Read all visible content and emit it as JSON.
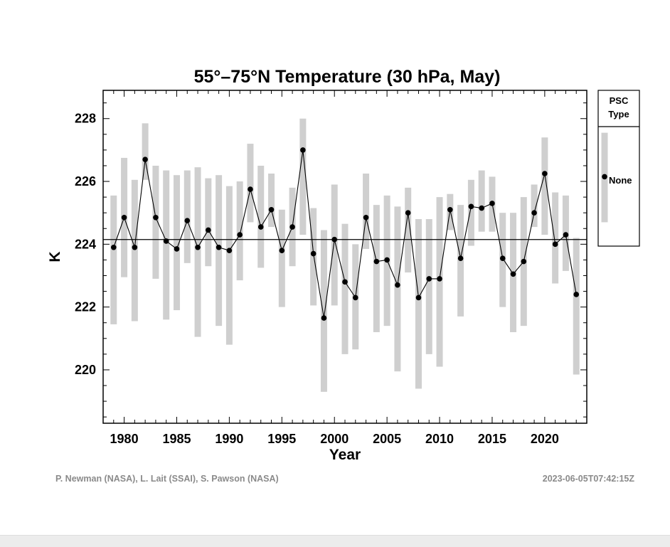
{
  "chart_data": {
    "type": "line",
    "title": "55°–75°N Temperature  (30 hPa, May)",
    "xlabel": "Year",
    "ylabel": "K",
    "xlim": [
      1978,
      2024
    ],
    "ylim": [
      218.3,
      228.9
    ],
    "xticks": [
      1980,
      1985,
      1990,
      1995,
      2000,
      2005,
      2010,
      2015,
      2020
    ],
    "yticks": [
      220,
      222,
      224,
      226,
      228
    ],
    "reference_line": 224.15,
    "legend": {
      "title_line1": "PSC",
      "title_line2": "Type",
      "entries": [
        "None"
      ]
    },
    "series": [
      {
        "name": "None",
        "years": [
          1979,
          1980,
          1981,
          1982,
          1983,
          1984,
          1985,
          1986,
          1987,
          1988,
          1989,
          1990,
          1991,
          1992,
          1993,
          1994,
          1995,
          1996,
          1997,
          1998,
          1999,
          2000,
          2001,
          2002,
          2003,
          2004,
          2005,
          2006,
          2007,
          2008,
          2009,
          2010,
          2011,
          2012,
          2013,
          2014,
          2015,
          2016,
          2017,
          2018,
          2019,
          2020,
          2021,
          2022,
          2023
        ],
        "values": [
          223.9,
          224.85,
          223.9,
          226.7,
          224.85,
          224.1,
          223.85,
          224.75,
          223.9,
          224.45,
          223.9,
          223.8,
          224.3,
          225.75,
          224.55,
          225.1,
          223.8,
          224.55,
          227.0,
          223.7,
          221.65,
          224.15,
          222.8,
          222.3,
          224.85,
          223.45,
          223.5,
          222.7,
          225.0,
          222.3,
          222.9,
          222.9,
          225.1,
          223.55,
          225.2,
          225.15,
          225.3,
          223.55,
          223.05,
          223.45,
          225.0,
          226.25,
          224.0,
          224.3,
          222.4
        ]
      }
    ],
    "ranges": {
      "low": [
        221.45,
        222.95,
        221.55,
        226.05,
        222.9,
        221.6,
        221.9,
        223.4,
        221.05,
        223.3,
        221.4,
        220.8,
        222.85,
        224.7,
        223.25,
        224.55,
        222.0,
        223.3,
        224.3,
        222.05,
        219.3,
        222.05,
        220.5,
        220.65,
        223.85,
        221.2,
        221.4,
        219.95,
        223.1,
        219.4,
        220.5,
        220.1,
        224.45,
        221.7,
        223.95,
        224.4,
        224.4,
        222.0,
        221.2,
        221.4,
        224.55,
        224.3,
        222.75,
        223.15,
        219.85
      ],
      "high": [
        225.55,
        226.75,
        226.05,
        227.85,
        226.5,
        226.35,
        226.2,
        226.35,
        226.45,
        226.1,
        226.2,
        225.85,
        226.0,
        227.2,
        226.5,
        226.25,
        225.1,
        225.8,
        228.0,
        225.15,
        224.45,
        225.9,
        224.65,
        224.0,
        226.25,
        225.25,
        225.55,
        225.2,
        225.8,
        224.8,
        224.8,
        225.5,
        225.6,
        225.25,
        226.05,
        226.35,
        226.15,
        225.0,
        225.0,
        225.5,
        225.9,
        227.4,
        225.65,
        225.55,
        224.2
      ]
    },
    "legend_range": {
      "low": 224.7,
      "high": 227.55,
      "marker": 226.15
    }
  },
  "footer": {
    "credit": "P. Newman (NASA), L. Lait (SSAI), S. Pawson (NASA)",
    "timestamp": "2023-06-05T07:42:15Z"
  },
  "colors": {
    "bar": "#cfcfcf",
    "line": "#000000",
    "marker": "#000000",
    "credit": "#8a8a8a"
  }
}
